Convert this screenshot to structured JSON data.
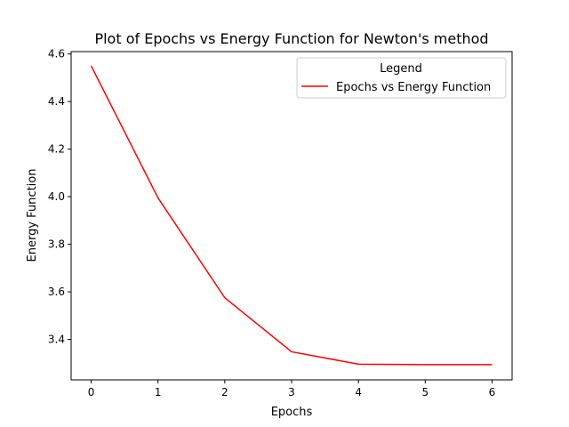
{
  "chart_data": {
    "type": "line",
    "title": "Plot of Epochs vs Energy Function for Newton's method",
    "xlabel": "Epochs",
    "ylabel": "Energy Function",
    "xlim": [
      -0.3,
      6.3
    ],
    "ylim": [
      3.23,
      4.61
    ],
    "xticks": [
      0,
      1,
      2,
      3,
      4,
      5,
      6
    ],
    "yticks": [
      3.4,
      3.6,
      3.8,
      4.0,
      4.2,
      4.4,
      4.6
    ],
    "ytick_labels": [
      "3.4",
      "3.6",
      "3.8",
      "4.0",
      "4.2",
      "4.4",
      "4.6"
    ],
    "grid": false,
    "legend": {
      "title": "Legend",
      "position": "top-right"
    },
    "series": [
      {
        "name": "Epochs vs Energy Function",
        "color": "#ff0000",
        "x": [
          0,
          1,
          2,
          3,
          4,
          5,
          6
        ],
        "y": [
          4.55,
          3.995,
          3.575,
          3.348,
          3.296,
          3.294,
          3.294
        ]
      }
    ]
  }
}
